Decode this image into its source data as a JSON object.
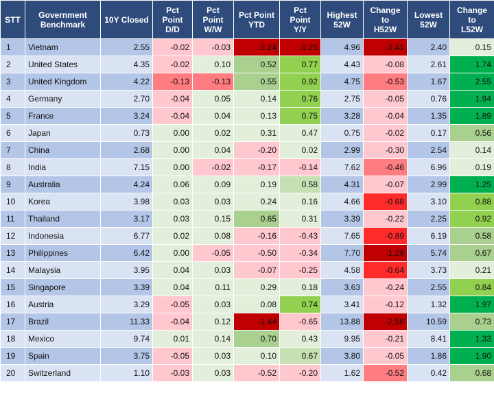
{
  "table": {
    "headers": [
      "STT",
      "Government\nBenchmark",
      "10Y Closed",
      "Pct\nPoint\nD/D",
      "Pct\nPoint\nW/W",
      "Pct Point\nYTD",
      "Pct\nPoint\nY/Y",
      "Highest\n52W",
      "Change\nto\nH52W",
      "Lowest\n52W",
      "Change\nto\nL52W"
    ],
    "rows": [
      {
        "stt": "1",
        "country": "Vietnam",
        "closed": "2.55",
        "dd": "-0.02",
        "ww": "-0.03",
        "ytd": "-2.24",
        "yy": "-1.25",
        "high": "4.96",
        "chg_high": "-2.41",
        "low": "2.40",
        "chg_low": "0.15"
      },
      {
        "stt": "2",
        "country": "United States",
        "closed": "4.35",
        "dd": "-0.02",
        "ww": "0.10",
        "ytd": "0.52",
        "yy": "0.77",
        "high": "4.43",
        "chg_high": "-0.08",
        "low": "2.61",
        "chg_low": "1.74"
      },
      {
        "stt": "3",
        "country": "United Kingdom",
        "closed": "4.22",
        "dd": "-0.13",
        "ww": "-0.13",
        "ytd": "0.55",
        "yy": "0.92",
        "high": "4.75",
        "chg_high": "-0.53",
        "low": "1.67",
        "chg_low": "2.55"
      },
      {
        "stt": "4",
        "country": "Germany",
        "closed": "2.70",
        "dd": "-0.04",
        "ww": "0.05",
        "ytd": "0.14",
        "yy": "0.76",
        "high": "2.75",
        "chg_high": "-0.05",
        "low": "0.76",
        "chg_low": "1.94"
      },
      {
        "stt": "5",
        "country": "France",
        "closed": "3.24",
        "dd": "-0.04",
        "ww": "0.04",
        "ytd": "0.13",
        "yy": "0.75",
        "high": "3.28",
        "chg_high": "-0.04",
        "low": "1.35",
        "chg_low": "1.89"
      },
      {
        "stt": "6",
        "country": "Japan",
        "closed": "0.73",
        "dd": "0.00",
        "ww": "0.02",
        "ytd": "0.31",
        "yy": "0.47",
        "high": "0.75",
        "chg_high": "-0.02",
        "low": "0.17",
        "chg_low": "0.56"
      },
      {
        "stt": "7",
        "country": "China",
        "closed": "2.68",
        "dd": "0.00",
        "ww": "0.04",
        "ytd": "-0.20",
        "yy": "0.02",
        "high": "2.99",
        "chg_high": "-0.30",
        "low": "2.54",
        "chg_low": "0.14"
      },
      {
        "stt": "8",
        "country": "India",
        "closed": "7.15",
        "dd": "0.00",
        "ww": "-0.02",
        "ytd": "-0.17",
        "yy": "-0.14",
        "high": "7.62",
        "chg_high": "-0.46",
        "low": "6.96",
        "chg_low": "0.19"
      },
      {
        "stt": "9",
        "country": "Australia",
        "closed": "4.24",
        "dd": "0.06",
        "ww": "0.09",
        "ytd": "0.19",
        "yy": "0.58",
        "high": "4.31",
        "chg_high": "-0.07",
        "low": "2.99",
        "chg_low": "1.25"
      },
      {
        "stt": "10",
        "country": "Korea",
        "closed": "3.98",
        "dd": "0.03",
        "ww": "0.03",
        "ytd": "0.24",
        "yy": "0.16",
        "high": "4.66",
        "chg_high": "-0.68",
        "low": "3.10",
        "chg_low": "0.88"
      },
      {
        "stt": "11",
        "country": "Thailand",
        "closed": "3.17",
        "dd": "0.03",
        "ww": "0.15",
        "ytd": "0.65",
        "yy": "0.31",
        "high": "3.39",
        "chg_high": "-0.22",
        "low": "2.25",
        "chg_low": "0.92"
      },
      {
        "stt": "12",
        "country": "Indonesia",
        "closed": "6.77",
        "dd": "0.02",
        "ww": "0.08",
        "ytd": "-0.16",
        "yy": "-0.43",
        "high": "7.65",
        "chg_high": "-0.89",
        "low": "6.19",
        "chg_low": "0.58"
      },
      {
        "stt": "13",
        "country": "Philippines",
        "closed": "6.42",
        "dd": "0.00",
        "ww": "-0.05",
        "ytd": "-0.50",
        "yy": "-0.34",
        "high": "7.70",
        "chg_high": "-1.29",
        "low": "5.74",
        "chg_low": "0.67"
      },
      {
        "stt": "14",
        "country": "Malaysia",
        "closed": "3.95",
        "dd": "0.04",
        "ww": "0.03",
        "ytd": "-0.07",
        "yy": "-0.25",
        "high": "4.58",
        "chg_high": "-0.64",
        "low": "3.73",
        "chg_low": "0.21"
      },
      {
        "stt": "15",
        "country": "Singapore",
        "closed": "3.39",
        "dd": "0.04",
        "ww": "0.11",
        "ytd": "0.29",
        "yy": "0.18",
        "high": "3.63",
        "chg_high": "-0.24",
        "low": "2.55",
        "chg_low": "0.84"
      },
      {
        "stt": "16",
        "country": "Austria",
        "closed": "3.29",
        "dd": "-0.05",
        "ww": "0.03",
        "ytd": "0.08",
        "yy": "0.74",
        "high": "3.41",
        "chg_high": "-0.12",
        "low": "1.32",
        "chg_low": "1.97"
      },
      {
        "stt": "17",
        "country": "Brazil",
        "closed": "11.33",
        "dd": "-0.04",
        "ww": "0.12",
        "ytd": "-1.44",
        "yy": "-0.65",
        "high": "13.88",
        "chg_high": "-2.56",
        "low": "10.59",
        "chg_low": "0.73"
      },
      {
        "stt": "18",
        "country": "Mexico",
        "closed": "9.74",
        "dd": "0.01",
        "ww": "0.14",
        "ytd": "0.70",
        "yy": "0.43",
        "high": "9.95",
        "chg_high": "-0.21",
        "low": "8.41",
        "chg_low": "1.33"
      },
      {
        "stt": "19",
        "country": "Spain",
        "closed": "3.75",
        "dd": "-0.05",
        "ww": "0.03",
        "ytd": "0.10",
        "yy": "0.67",
        "high": "3.80",
        "chg_high": "-0.05",
        "low": "1.86",
        "chg_low": "1.90"
      },
      {
        "stt": "20",
        "country": "Switzerland",
        "closed": "1.10",
        "dd": "-0.03",
        "ww": "0.03",
        "ytd": "-0.52",
        "yy": "-0.20",
        "high": "1.62",
        "chg_high": "-0.52",
        "low": "0.42",
        "chg_low": "0.68"
      }
    ]
  },
  "colors": {
    "header_bg": "#2f4b7c",
    "row_odd": "#b4c6e7",
    "row_even": "#dae3f3",
    "neutral_cell": "#e2efda",
    "neg_light": "#ffc7ce",
    "neg_mid": "#ff7c80",
    "neg_strong": "#ff2a2a",
    "neg_dark": "#c00000",
    "pos_light": "#c6e0b4",
    "pos_mid": "#a9d08e",
    "pos_strong": "#92d050",
    "pos_dark": "#00b050"
  }
}
